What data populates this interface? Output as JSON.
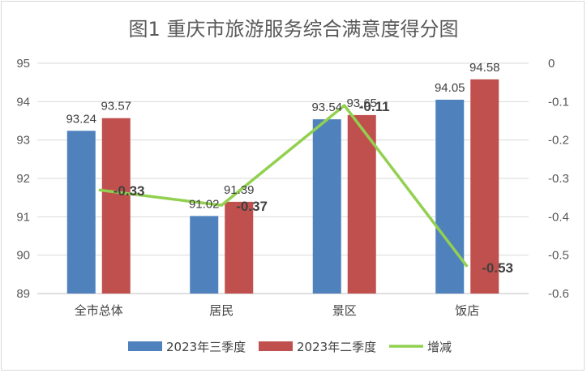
{
  "chart_data": {
    "type": "bar",
    "title": "图1 重庆市旅游服务综合满意度得分图",
    "categories": [
      "全市总体",
      "居民",
      "景区",
      "饭店"
    ],
    "series": [
      {
        "name": "2023年三季度",
        "kind": "bar",
        "axis": "left",
        "color": "#4f81bd",
        "values": [
          93.24,
          91.02,
          93.54,
          94.05
        ]
      },
      {
        "name": "2023年二季度",
        "kind": "bar",
        "axis": "left",
        "color": "#c0504d",
        "values": [
          93.57,
          91.39,
          93.65,
          94.58
        ]
      },
      {
        "name": "增减",
        "kind": "line",
        "axis": "right",
        "color": "#92d050",
        "values": [
          -0.33,
          -0.37,
          -0.11,
          -0.53
        ]
      }
    ],
    "left_axis": {
      "ylim": [
        89,
        95
      ],
      "ticks": [
        "89",
        "90",
        "91",
        "92",
        "93",
        "94",
        "95"
      ]
    },
    "right_axis": {
      "ylim": [
        -0.6,
        0
      ],
      "ticks": [
        "0",
        "-0.1",
        "-0.2",
        "-0.3",
        "-0.4",
        "-0.5",
        "-0.6"
      ]
    },
    "data_labels": {
      "bar_s1": [
        "93.24",
        "91.02",
        "93.54",
        "94.05"
      ],
      "bar_s2": [
        "93.57",
        "91.39",
        "93.65",
        "94.58"
      ],
      "line": [
        "-0.33",
        "-0.37",
        "-0.11",
        "-0.53"
      ]
    },
    "grid": true,
    "legend_position": "bottom"
  }
}
